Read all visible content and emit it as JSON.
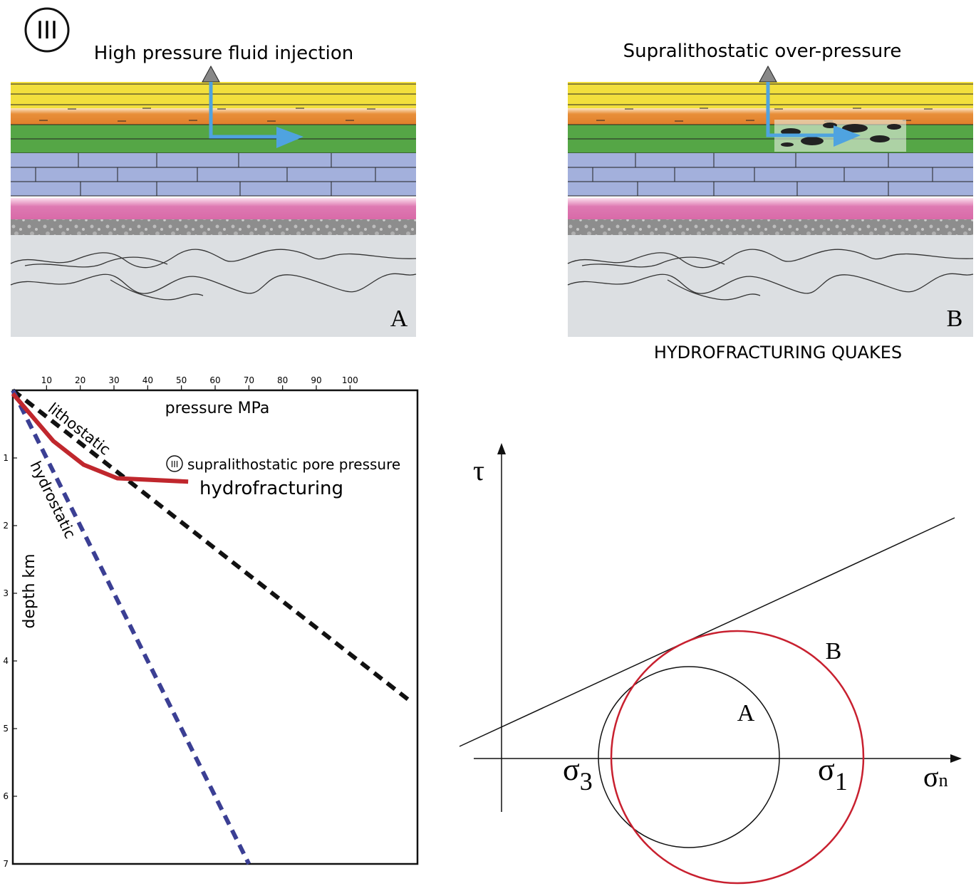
{
  "figure_label": "III",
  "panel_a": {
    "title": "High pressure fluid injection",
    "label": "A"
  },
  "panel_b": {
    "title": "Supralithostatic over-pressure",
    "label": "B",
    "caption": "HYDROFRACTURING QUAKES"
  },
  "plot": {
    "xlabel": "pressure MPa",
    "ylabel": "depth km",
    "xlim": [
      0,
      120
    ],
    "ylim": [
      0,
      7
    ],
    "xticks": [
      10,
      20,
      30,
      40,
      50,
      60,
      70,
      80,
      90,
      100
    ],
    "yticks": [
      1,
      2,
      3,
      4,
      5,
      6,
      7
    ],
    "series": [
      {
        "name": "lithostatic",
        "color": "#111111",
        "dashed": true,
        "x": [
          0,
          118
        ],
        "y": [
          0,
          4.6
        ]
      },
      {
        "name": "hydrostatic",
        "color": "#3b3f94",
        "dashed": true,
        "x": [
          0,
          70
        ],
        "y": [
          0,
          7
        ]
      },
      {
        "name": "hydrofracturing",
        "color": "#c0272d",
        "dashed": false,
        "x": [
          0,
          12,
          21,
          31,
          52
        ],
        "y": [
          0.05,
          0.75,
          1.1,
          1.3,
          1.35
        ]
      }
    ],
    "annotation": {
      "marker": "III",
      "text": "supralithostatic pore pressure"
    }
  },
  "mohr": {
    "y_axis": "τ",
    "x_axis": {
      "symbol": "σ",
      "sub": "n"
    },
    "sigma3": {
      "symbol": "σ",
      "sub": "3"
    },
    "sigma1": {
      "symbol": "σ",
      "sub": "1"
    },
    "circle_a": "A",
    "circle_b": "B"
  }
}
